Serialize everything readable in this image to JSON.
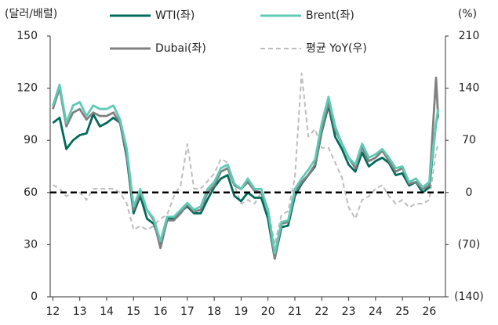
{
  "chart_data": {
    "type": "line",
    "y_label": "(달러/배럴)",
    "y2_label": "(%)",
    "x": [
      12,
      12.25,
      12.5,
      12.75,
      13,
      13.25,
      13.5,
      13.75,
      14,
      14.25,
      14.5,
      14.75,
      15,
      15.25,
      15.5,
      15.75,
      16,
      16.25,
      16.5,
      16.75,
      17,
      17.25,
      17.5,
      17.75,
      18,
      18.25,
      18.5,
      18.75,
      19,
      19.25,
      19.5,
      19.75,
      20,
      20.25,
      20.5,
      20.75,
      21,
      21.25,
      21.5,
      21.75,
      22,
      22.25,
      22.5,
      22.75,
      23,
      23.25,
      23.5,
      23.75,
      24,
      24.25,
      24.5,
      24.75,
      25,
      25.25,
      25.5,
      25.75,
      26,
      26.25,
      26.33
    ],
    "series": [
      {
        "name": "WTI(좌)",
        "color": "#006b5a",
        "values": [
          100,
          103,
          85,
          90,
          93,
          94,
          105,
          98,
          100,
          103,
          100,
          80,
          48,
          58,
          45,
          42,
          31,
          45,
          45,
          49,
          52,
          48,
          48,
          56,
          63,
          68,
          70,
          58,
          55,
          60,
          57,
          57,
          45,
          22,
          40,
          41,
          58,
          65,
          70,
          75,
          95,
          110,
          92,
          85,
          76,
          72,
          83,
          75,
          78,
          80,
          77,
          70,
          71,
          64,
          66,
          60,
          63,
          100,
          105
        ]
      },
      {
        "name": "Brent(좌)",
        "color": "#5ecbb5",
        "values": [
          110,
          122,
          100,
          110,
          112,
          104,
          110,
          108,
          108,
          110,
          102,
          85,
          52,
          62,
          50,
          45,
          32,
          46,
          46,
          50,
          54,
          50,
          52,
          62,
          66,
          74,
          76,
          65,
          62,
          68,
          62,
          62,
          50,
          25,
          43,
          44,
          62,
          68,
          73,
          79,
          100,
          115,
          98,
          88,
          80,
          76,
          88,
          80,
          82,
          85,
          80,
          74,
          75,
          66,
          68,
          63,
          66,
          100,
          108
        ]
      },
      {
        "name": "Dubai(좌)",
        "color": "#808080",
        "values": [
          108,
          120,
          98,
          106,
          108,
          102,
          106,
          104,
          104,
          106,
          100,
          82,
          50,
          60,
          50,
          44,
          28,
          44,
          44,
          48,
          53,
          49,
          50,
          60,
          64,
          72,
          74,
          64,
          62,
          66,
          61,
          60,
          50,
          22,
          42,
          43,
          60,
          66,
          70,
          76,
          96,
          112,
          96,
          88,
          80,
          74,
          86,
          78,
          80,
          84,
          78,
          72,
          74,
          65,
          66,
          62,
          64,
          126,
          103
        ]
      },
      {
        "name": "평균 YoY(우)",
        "color": "#bdbdbd",
        "axis": "y2",
        "dashed": true,
        "values": [
          10,
          5,
          -5,
          0,
          0,
          -10,
          5,
          5,
          5,
          5,
          0,
          -15,
          -50,
          -45,
          -50,
          -45,
          -35,
          -30,
          -5,
          10,
          65,
          5,
          5,
          15,
          25,
          45,
          40,
          10,
          -15,
          -10,
          -15,
          0,
          -20,
          -70,
          -30,
          -25,
          20,
          160,
          75,
          85,
          60,
          60,
          40,
          20,
          -20,
          -35,
          -10,
          -5,
          5,
          10,
          -5,
          -15,
          -10,
          -20,
          -15,
          -15,
          -10,
          55,
          65
        ]
      }
    ],
    "xlim": [
      11.9,
      26.6
    ],
    "xticks": [
      12,
      13,
      14,
      15,
      16,
      17,
      18,
      19,
      20,
      21,
      22,
      23,
      24,
      25,
      26
    ],
    "ylim": [
      0,
      150
    ],
    "yticks": [
      0,
      30,
      60,
      90,
      120,
      150
    ],
    "y2lim": [
      -140,
      210
    ],
    "y2ticks": [
      {
        "value": -140,
        "label": "(140)"
      },
      {
        "value": -70,
        "label": "(70)"
      },
      0,
      70,
      140,
      210
    ],
    "hline_y2": 0
  }
}
